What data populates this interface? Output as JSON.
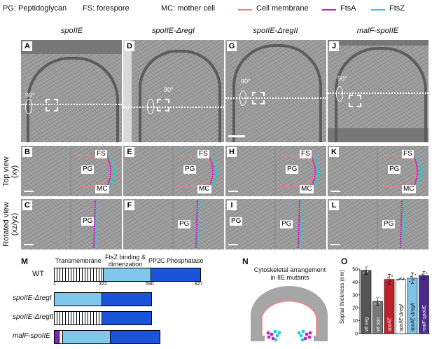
{
  "legend": {
    "pg": "PG: Peptidoglycan",
    "fs": "FS: forespore",
    "mc": "MC: mother cell",
    "cell_membrane": "Cell membrane",
    "ftsa": "FtsA",
    "ftsz": "FtsZ",
    "colors": {
      "cell_membrane": "#f08080",
      "ftsa": "#c020c0",
      "ftsz": "#20d0d8"
    }
  },
  "columns": [
    "spoIIE",
    "spoIIE-ΔregI",
    "spoIIE-ΔregII",
    "malF-spoIIE"
  ],
  "panels": {
    "row1": [
      "A",
      "D",
      "G",
      "J"
    ],
    "row2": [
      "B",
      "E",
      "H",
      "K"
    ],
    "row3": [
      "C",
      "F",
      "I",
      "L"
    ],
    "rotation": "90°"
  },
  "row_labels": {
    "top": "Top view\n(xy)",
    "rotated": "Rotated view\n(xz/yz)"
  },
  "tags": {
    "fs": "FS",
    "pg": "PG",
    "mc": "MC"
  },
  "panel_m": {
    "label": "M",
    "domains": {
      "tm": "Transmembrane",
      "ftsz": "FtsZ binding &\ndimerization",
      "pp2c": "PP2C Phosphatase"
    },
    "ticks": [
      "1",
      "322",
      "590",
      "827"
    ],
    "rows": [
      "WT",
      "spoIIE-ΔregI",
      "spoIIE-ΔregII",
      "malF-spoIIE"
    ]
  },
  "panel_n": {
    "label": "N",
    "title": "Cytoskeletal arrangement\nin IIE mutants"
  },
  "panel_o": {
    "label": "O",
    "ylabel": "Septal thickness (nm)",
    "chart_data": {
      "type": "bar",
      "categories": [
        "wt veg",
        "wt spo",
        "spoIIE",
        "spoIIE-ΔregI",
        "spoIIE-ΔregII",
        "malF-spoIIE"
      ],
      "values": [
        49,
        25,
        42,
        42,
        43,
        45
      ],
      "errors": [
        3,
        3,
        4,
        0,
        4,
        3
      ],
      "colors": [
        "#555555",
        "#777777",
        "#c0202a",
        "#ffffff",
        "#7fc4e8",
        "#4a2a8a"
      ],
      "yticks": [
        "0",
        "10",
        "20",
        "30",
        "40",
        "50"
      ],
      "ylim": [
        0,
        50
      ]
    }
  }
}
